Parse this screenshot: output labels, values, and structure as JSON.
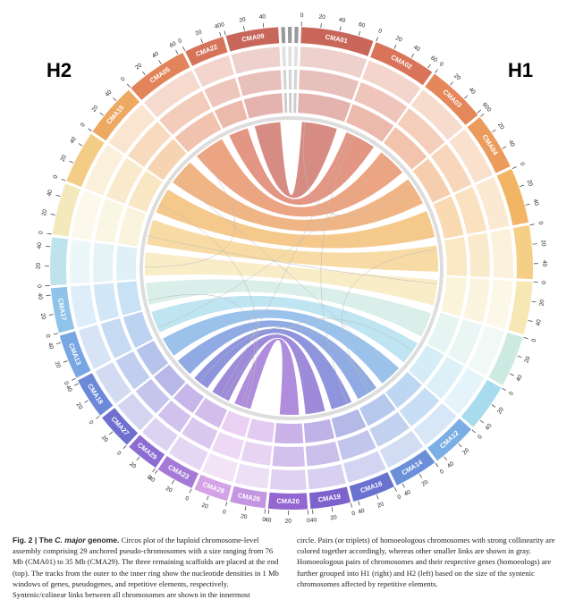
{
  "figure": {
    "left_label": "H2",
    "right_label": "H1",
    "chromosomes": [
      {
        "name": "CMA01",
        "color": "#c8665a",
        "length": 76,
        "ticks": [
          0,
          20,
          40,
          60
        ]
      },
      {
        "name": "CMA02",
        "color": "#d9735a",
        "length": 66,
        "ticks": [
          0,
          20,
          40,
          60
        ]
      },
      {
        "name": "CMA03",
        "color": "#e4875a",
        "length": 62,
        "ticks": [
          0,
          20,
          40,
          60
        ]
      },
      {
        "name": "CMA04",
        "color": "#eb9c5c",
        "length": 60,
        "ticks": [
          0,
          20,
          40
        ]
      },
      {
        "name": null,
        "color": "#f2b566",
        "length": 58,
        "ticks": [
          0,
          20,
          40
        ]
      },
      {
        "name": null,
        "color": "#f5cf86",
        "length": 56,
        "ticks": [
          0,
          20,
          40
        ]
      },
      {
        "name": null,
        "color": "#f6e7b4",
        "length": 55,
        "ticks": [
          0,
          20,
          40
        ]
      },
      {
        "name": null,
        "color": "#cdeae2",
        "length": 54,
        "ticks": [
          0,
          20,
          40
        ]
      },
      {
        "name": null,
        "color": "#a9dbee",
        "length": 50,
        "ticks": [
          0,
          20,
          40
        ]
      },
      {
        "name": "CMA12",
        "color": "#7aaee4",
        "length": 48,
        "ticks": [
          0,
          20,
          40
        ]
      },
      {
        "name": "CMA14",
        "color": "#6b8fd9",
        "length": 46,
        "ticks": [
          0,
          20,
          40
        ]
      },
      {
        "name": "CMA16",
        "color": "#6a72d0",
        "length": 45,
        "ticks": [
          0,
          20,
          40
        ]
      },
      {
        "name": "CMA19",
        "color": "#7c63cc",
        "length": 42,
        "ticks": [
          0,
          20,
          40
        ]
      },
      {
        "name": "CMA20",
        "color": "#9466d0",
        "length": 41,
        "ticks": [
          0,
          20,
          40
        ]
      },
      {
        "name": "CMA26",
        "color": "#c495e0",
        "length": 37,
        "ticks": [
          0,
          20
        ]
      },
      {
        "name": "CMA28",
        "color": "#d4a2e6",
        "length": 36,
        "ticks": [
          0,
          20
        ]
      },
      {
        "name": "CMA23",
        "color": "#a57ad6",
        "length": 40,
        "ticks": [
          0,
          20,
          40
        ]
      },
      {
        "name": "CMA29",
        "color": "#8c6bd2",
        "length": 35,
        "ticks": [
          0,
          20
        ]
      },
      {
        "name": "CMA27",
        "color": "#6f6fd0",
        "length": 38,
        "ticks": [
          0,
          20
        ]
      },
      {
        "name": "CMA18",
        "color": "#6c88d8",
        "length": 43,
        "ticks": [
          0,
          20,
          40
        ]
      },
      {
        "name": "CMA13",
        "color": "#77a6e2",
        "length": 47,
        "ticks": [
          0,
          20,
          40
        ]
      },
      {
        "name": "CMA17",
        "color": "#8fc3ea",
        "length": 47,
        "ticks": [
          0,
          20,
          40
        ]
      },
      {
        "name": null,
        "color": "#bfe3ec",
        "length": 50,
        "ticks": [
          0,
          20,
          40
        ]
      },
      {
        "name": null,
        "color": "#f4e9bd",
        "length": 54,
        "ticks": [
          0,
          20,
          40
        ]
      },
      {
        "name": null,
        "color": "#f3cd86",
        "length": 55,
        "ticks": [
          0,
          20,
          40
        ]
      },
      {
        "name": "CMA15",
        "color": "#eda862",
        "length": 57,
        "ticks": [
          0,
          20,
          40
        ]
      },
      {
        "name": "CMA05",
        "color": "#e2835a",
        "length": 65,
        "ticks": [
          0,
          20,
          40,
          60
        ]
      },
      {
        "name": "CMA22",
        "color": "#d6745a",
        "length": 42,
        "ticks": [
          0,
          20,
          40
        ]
      },
      {
        "name": "CMA09",
        "color": "#c8665a",
        "length": 55,
        "ticks": [
          0,
          20,
          40
        ]
      },
      {
        "name": null,
        "color": "#9a9a9a",
        "length": 4
      },
      {
        "name": null,
        "color": "#9a9a9a",
        "length": 4
      },
      {
        "name": null,
        "color": "#9a9a9a",
        "length": 4
      }
    ]
  },
  "caption": {
    "label": "Fig. 2 | The ",
    "species": "C. major",
    "title_end": " genome.",
    "column1": "Circos plot of the haploid chromosome-level assembly comprising 29 anchored pseudo-chromosomes with a size ranging from 76 Mb (CMA01) to 35 Mb (CMA29). The three remaining scaffolds are placed at the end (top). The tracks from the outer to the inner ring show the nucleotide densities in 1 Mb windows of genes, pseudogenes, and repetitive elements, respectively. Syntenic/colinear links between all chromosomes are shown in the innermost",
    "column2": "circle. Pairs (or triplets) of homoeologous chromosomes with strong collinearity are colored together accordingly, whereas other smaller links are shown in gray. Homoeologous pairs of chromosomes and their respective genes (homoeologs) are further grouped into H1 (right) and H2 (left) based on the size of the syntenic chromosomes affected by repetitive elements."
  }
}
